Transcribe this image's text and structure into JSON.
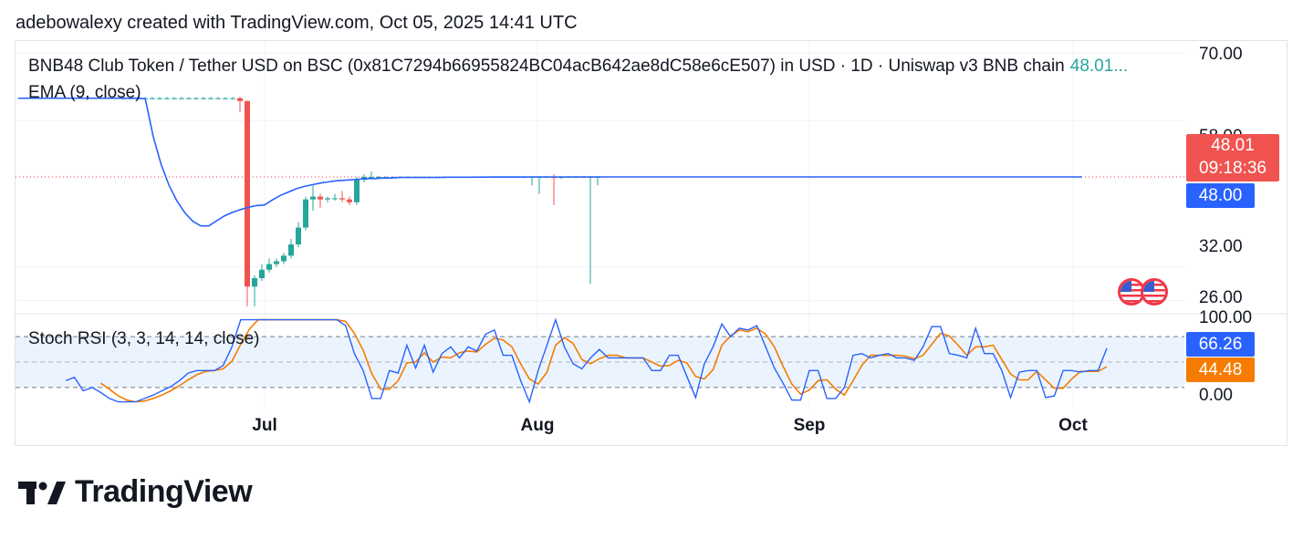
{
  "header": {
    "attribution": "adebowalexy created with TradingView.com, Oct 05, 2025 14:41 UTC"
  },
  "legend": {
    "symbol": "BNB48 Club Token / Tether USD on BSC (0x81C7294b66955824BC04acB642ae8dC58e6cE507) in USD · 1D · Uniswap v3 BNB chain",
    "last_price": "48.01...",
    "ema_label": "EMA (9, close)",
    "stoch_label": "Stoch RSI (3, 3, 14, 14, close)"
  },
  "price_axis": {
    "ticks": [
      "70.00",
      "58.00",
      "32.00",
      "26.00"
    ]
  },
  "stoch_axis": {
    "ticks": [
      "100.00",
      "0.00"
    ]
  },
  "tags": {
    "price": "48.01",
    "countdown": "09:18:36",
    "ema": "48.00",
    "stoch_k": "66.26",
    "stoch_d": "44.48"
  },
  "time_axis": {
    "labels": [
      "Jul",
      "Aug",
      "Sep",
      "Oct"
    ]
  },
  "logo": {
    "text": "TradingView"
  },
  "colors": {
    "up": "#26a69a",
    "down": "#ef5350",
    "ema": "#2962ff",
    "k_line": "#2962ff",
    "d_line": "#f57c00",
    "band": "#e3effd"
  },
  "chart_data": [
    {
      "type": "candlestick",
      "title": "BNB48 Club Token / Tether USD on BSC (0x81C7294b66955824BC04acB642ae8dC58e6cE507) in USD · 1D · Uniswap v3 BNB chain",
      "x_labels": [
        "Jul",
        "Aug",
        "Sep",
        "Oct"
      ],
      "ylim": [
        24,
        72
      ],
      "y_ticks": [
        26,
        32,
        58,
        70
      ],
      "last_value": 48.01,
      "candles": [
        {
          "o": 62.0,
          "h": 62.2,
          "l": 61.8,
          "c": 62.0
        },
        {
          "o": 62.0,
          "h": 62.2,
          "l": 61.8,
          "c": 62.0
        },
        {
          "o": 62.0,
          "h": 62.2,
          "l": 61.8,
          "c": 62.0
        },
        {
          "o": 62.0,
          "h": 62.2,
          "l": 61.8,
          "c": 62.0
        },
        {
          "o": 62.0,
          "h": 62.2,
          "l": 61.8,
          "c": 62.0
        },
        {
          "o": 62.0,
          "h": 62.2,
          "l": 61.8,
          "c": 62.0
        },
        {
          "o": 62.0,
          "h": 62.2,
          "l": 61.8,
          "c": 62.0
        },
        {
          "o": 62.0,
          "h": 62.2,
          "l": 61.8,
          "c": 62.0
        },
        {
          "o": 62.0,
          "h": 62.2,
          "l": 61.8,
          "c": 62.0
        },
        {
          "o": 62.0,
          "h": 62.2,
          "l": 61.8,
          "c": 62.0
        },
        {
          "o": 62.0,
          "h": 62.2,
          "l": 61.8,
          "c": 62.0
        },
        {
          "o": 62.0,
          "h": 62.2,
          "l": 61.8,
          "c": 62.0
        },
        {
          "o": 62.0,
          "h": 62.2,
          "l": 61.8,
          "c": 62.0
        },
        {
          "o": 62.0,
          "h": 62.2,
          "l": 61.8,
          "c": 62.0
        },
        {
          "o": 62.0,
          "h": 62.2,
          "l": 61.8,
          "c": 62.0
        },
        {
          "o": 62.0,
          "h": 62.2,
          "l": 61.8,
          "c": 62.0
        },
        {
          "o": 62.0,
          "h": 62.2,
          "l": 59.5,
          "c": 61.5
        },
        {
          "o": 61.5,
          "h": 61.5,
          "l": 25.0,
          "c": 28.5
        },
        {
          "o": 28.5,
          "h": 30.5,
          "l": 25.0,
          "c": 30.0
        },
        {
          "o": 30.0,
          "h": 32.5,
          "l": 29.5,
          "c": 31.5
        },
        {
          "o": 31.5,
          "h": 33.5,
          "l": 31.0,
          "c": 32.5
        },
        {
          "o": 32.5,
          "h": 33.5,
          "l": 32.0,
          "c": 33.0
        },
        {
          "o": 33.0,
          "h": 34.5,
          "l": 32.5,
          "c": 34.0
        },
        {
          "o": 34.0,
          "h": 37.0,
          "l": 33.5,
          "c": 36.0
        },
        {
          "o": 36.0,
          "h": 40.0,
          "l": 35.5,
          "c": 39.0
        },
        {
          "o": 39.0,
          "h": 44.5,
          "l": 38.5,
          "c": 44.0
        },
        {
          "o": 44.0,
          "h": 46.5,
          "l": 42.0,
          "c": 44.5
        },
        {
          "o": 44.5,
          "h": 45.0,
          "l": 42.5,
          "c": 44.0
        },
        {
          "o": 44.0,
          "h": 44.5,
          "l": 43.5,
          "c": 44.2
        },
        {
          "o": 44.2,
          "h": 45.0,
          "l": 43.8,
          "c": 44.2
        },
        {
          "o": 44.2,
          "h": 45.5,
          "l": 43.5,
          "c": 44.0
        },
        {
          "o": 44.0,
          "h": 44.5,
          "l": 43.0,
          "c": 43.5
        },
        {
          "o": 43.5,
          "h": 48.0,
          "l": 43.0,
          "c": 47.5
        },
        {
          "o": 47.5,
          "h": 48.5,
          "l": 47.0,
          "c": 48.0
        },
        {
          "o": 48.0,
          "h": 49.0,
          "l": 47.8,
          "c": 48.0
        },
        {
          "o": 48.0,
          "h": 48.2,
          "l": 47.9,
          "c": 48.0
        },
        {
          "o": 48.0,
          "h": 48.1,
          "l": 47.9,
          "c": 48.0
        },
        {
          "o": 48.0,
          "h": 48.1,
          "l": 47.9,
          "c": 48.0
        },
        {
          "o": 48.0,
          "h": 48.1,
          "l": 47.9,
          "c": 48.0
        },
        {
          "o": 48.0,
          "h": 48.1,
          "l": 47.9,
          "c": 48.0
        },
        {
          "o": 48.0,
          "h": 48.1,
          "l": 47.9,
          "c": 48.0
        },
        {
          "o": 48.0,
          "h": 48.1,
          "l": 47.9,
          "c": 48.0
        },
        {
          "o": 48.0,
          "h": 48.1,
          "l": 47.9,
          "c": 48.0
        },
        {
          "o": 48.0,
          "h": 48.1,
          "l": 47.9,
          "c": 48.0
        },
        {
          "o": 48.0,
          "h": 48.1,
          "l": 47.9,
          "c": 48.0
        },
        {
          "o": 48.0,
          "h": 48.1,
          "l": 47.9,
          "c": 48.0
        },
        {
          "o": 48.0,
          "h": 48.1,
          "l": 47.9,
          "c": 48.0
        },
        {
          "o": 48.0,
          "h": 48.1,
          "l": 47.9,
          "c": 48.0
        },
        {
          "o": 48.0,
          "h": 48.1,
          "l": 47.9,
          "c": 48.0
        },
        {
          "o": 48.0,
          "h": 48.1,
          "l": 47.9,
          "c": 48.0
        },
        {
          "o": 48.0,
          "h": 48.1,
          "l": 47.9,
          "c": 48.0
        },
        {
          "o": 48.0,
          "h": 48.1,
          "l": 47.9,
          "c": 48.0
        },
        {
          "o": 48.0,
          "h": 48.1,
          "l": 47.9,
          "c": 48.0
        },
        {
          "o": 48.0,
          "h": 48.1,
          "l": 47.9,
          "c": 48.0
        },
        {
          "o": 48.0,
          "h": 48.1,
          "l": 47.9,
          "c": 48.0
        },
        {
          "o": 48.0,
          "h": 48.1,
          "l": 47.9,
          "c": 48.0
        },
        {
          "o": 48.0,
          "h": 48.1,
          "l": 46.5,
          "c": 48.0
        },
        {
          "o": 48.0,
          "h": 48.1,
          "l": 45.0,
          "c": 48.0
        },
        {
          "o": 48.0,
          "h": 48.1,
          "l": 47.9,
          "c": 48.0
        },
        {
          "o": 48.0,
          "h": 48.5,
          "l": 43.0,
          "c": 47.8
        },
        {
          "o": 47.8,
          "h": 48.1,
          "l": 47.7,
          "c": 48.0
        },
        {
          "o": 48.0,
          "h": 48.1,
          "l": 47.9,
          "c": 48.0
        },
        {
          "o": 48.0,
          "h": 48.1,
          "l": 47.9,
          "c": 48.0
        },
        {
          "o": 48.0,
          "h": 48.1,
          "l": 47.9,
          "c": 48.0
        },
        {
          "o": 48.0,
          "h": 48.1,
          "l": 29.0,
          "c": 48.0
        },
        {
          "o": 48.0,
          "h": 48.1,
          "l": 46.5,
          "c": 48.0
        }
      ],
      "ema": {
        "name": "EMA (9, close)",
        "values": [
          62.0,
          62.0,
          62.0,
          62.0,
          62.0,
          62.0,
          62.0,
          62.0,
          62.0,
          62.0,
          62.0,
          62.0,
          62.0,
          62.0,
          62.0,
          62.0,
          61.9,
          55.2,
          50.2,
          46.5,
          43.7,
          41.6,
          40.1,
          39.3,
          39.3,
          40.2,
          41.1,
          41.7,
          42.2,
          42.6,
          42.9,
          43.0,
          43.9,
          44.7,
          45.3,
          45.9,
          46.3,
          46.6,
          46.9,
          47.1,
          47.3,
          47.4,
          47.5,
          47.6,
          47.7,
          47.7,
          47.8,
          47.8,
          47.9,
          47.9,
          47.9,
          47.9,
          47.9,
          47.9,
          47.95,
          47.95,
          47.95,
          47.95,
          47.96,
          47.97,
          47.98,
          47.98,
          47.98,
          47.99,
          47.99,
          48.0,
          48.0,
          48.0,
          48.0,
          48.0,
          48.0,
          48.0,
          48.0,
          48.0,
          48.0,
          48.0,
          48.0,
          48.0,
          48.0,
          48.0,
          48.0,
          48.0,
          48.0,
          48.0,
          48.0,
          48.0,
          48.0,
          48.0,
          48.0,
          48.0,
          48.0,
          48.0,
          48.0,
          48.0,
          48.0,
          48.0,
          48.0,
          48.0,
          48.0,
          48.0,
          48.0,
          48.0,
          48.0,
          48.0,
          48.0,
          48.0,
          48.0,
          48.0,
          48.0,
          48.0,
          48.0,
          48.0,
          48.0,
          48.0,
          48.0,
          48.0,
          48.0,
          48.0,
          48.0,
          48.0,
          48.0,
          48.0,
          48.0,
          48.0,
          48.0,
          48.0,
          48.0,
          48.0,
          48.0,
          48.0,
          48.0,
          48.0,
          48.0,
          48.0,
          48.0
        ]
      }
    },
    {
      "type": "line",
      "title": "Stoch RSI (3, 3, 14, 14, close)",
      "ylim": [
        -5,
        105
      ],
      "y_ticks": [
        0,
        100
      ],
      "bands": [
        20,
        80
      ],
      "series": [
        {
          "name": "K",
          "last_value": 66.26,
          "values": [
            28,
            32,
            16,
            20,
            14,
            7,
            3,
            3,
            3,
            7,
            11,
            16,
            21,
            28,
            37,
            40,
            40,
            40,
            46,
            68,
            100,
            100,
            100,
            100,
            100,
            100,
            100,
            100,
            100,
            100,
            100,
            100,
            93,
            60,
            40,
            7,
            7,
            40,
            37,
            70,
            43,
            70,
            38,
            60,
            68,
            55,
            68,
            63,
            83,
            88,
            58,
            58,
            28,
            3,
            40,
            70,
            100,
            68,
            48,
            42,
            55,
            65,
            55,
            55,
            55,
            55,
            55,
            40,
            40,
            58,
            58,
            33,
            8,
            48,
            68,
            95,
            80,
            90,
            88,
            93,
            68,
            43,
            25,
            5,
            5,
            40,
            40,
            7,
            7,
            20,
            58,
            60,
            55,
            58,
            60,
            55,
            55,
            52,
            68,
            92,
            92,
            60,
            58,
            55,
            90,
            60,
            60,
            40,
            8,
            38,
            40,
            40,
            8,
            10,
            40,
            40,
            38,
            40,
            40,
            66.26
          ]
        },
        {
          "name": "D",
          "last_value": 44.48,
          "values": [
            null,
            null,
            null,
            null,
            25,
            18,
            10,
            5,
            3,
            4,
            7,
            11,
            16,
            22,
            29,
            35,
            39,
            40,
            42,
            51,
            71,
            89,
            100,
            100,
            100,
            100,
            100,
            100,
            100,
            100,
            100,
            100,
            98,
            84,
            64,
            36,
            18,
            18,
            28,
            49,
            50,
            61,
            50,
            56,
            55,
            61,
            63,
            62,
            71,
            78,
            76,
            68,
            48,
            30,
            24,
            38,
            70,
            79,
            72,
            53,
            48,
            54,
            58,
            58,
            55,
            55,
            55,
            50,
            45,
            46,
            52,
            49,
            33,
            30,
            41,
            70,
            81,
            88,
            86,
            90,
            83,
            68,
            45,
            24,
            12,
            17,
            28,
            29,
            18,
            11,
            28,
            46,
            58,
            58,
            58,
            58,
            57,
            54,
            58,
            71,
            84,
            81,
            70,
            58,
            68,
            68,
            70,
            53,
            36,
            29,
            29,
            39,
            29,
            19,
            19,
            30,
            39,
            39,
            39,
            44.48
          ]
        }
      ]
    }
  ]
}
